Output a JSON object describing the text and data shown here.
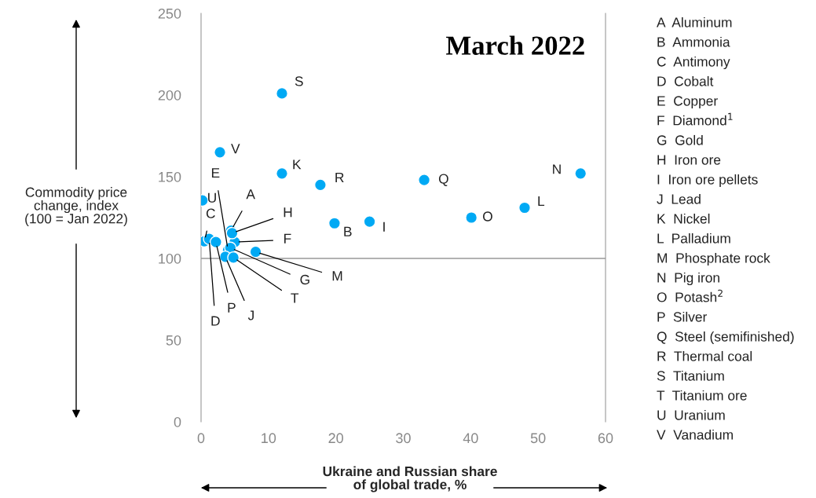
{
  "chart_data": {
    "type": "scatter",
    "title": "March 2022",
    "xlabel": "Ukraine and Russian share\nof global trade, %",
    "ylabel": "Commodity price\nchange, index\n(100 = Jan 2022)",
    "xlim": [
      0,
      60
    ],
    "xticks": [
      0,
      10,
      20,
      30,
      40,
      50,
      60
    ],
    "ylim": [
      0,
      250
    ],
    "yticks": [
      0,
      50,
      100,
      150,
      200,
      250
    ],
    "grid": false,
    "marker": "circle",
    "ref_lines": [
      {
        "axis": "y",
        "value": 100,
        "color": "#999999"
      }
    ],
    "series": [
      {
        "color": "#00a9f4",
        "x": [
          4.45,
          19.8,
          0.5,
          1.2,
          4.0,
          5.0,
          4.35,
          4.6,
          25.0,
          3.6,
          12.0,
          48.0,
          8.1,
          56.3,
          40.1,
          2.2,
          33.1,
          17.7,
          12.0,
          4.8,
          0.2,
          2.8
        ],
        "values": [
          117,
          121.5,
          110.5,
          112,
          105,
          110,
          106.5,
          115.5,
          122.5,
          101,
          152,
          131,
          104,
          152,
          125,
          110,
          148,
          145,
          201,
          100.5,
          135.5,
          165
        ],
        "value_labels": [
          "A",
          "B",
          "C",
          "D",
          "E",
          "F",
          "G",
          "H",
          "I",
          "J",
          "K",
          "L",
          "M",
          "N",
          "O",
          "P",
          "Q",
          "R",
          "S",
          "T",
          "U",
          "V"
        ]
      }
    ],
    "annotations": [
      "A  Aluminum",
      "B  Ammonia",
      "C  Antimony",
      "D  Cobalt",
      "E  Copper",
      "F  Diamond$^{1}$",
      "G  Gold",
      "H  Iron ore",
      "I  Iron ore pellets",
      "J  Lead",
      "K  Nickel",
      "L  Palladium",
      "M  Phosphate rock",
      "N  Pig iron",
      "O  Potash$^{2}$",
      "P  Silver",
      "Q  Steel (semifinished)",
      "R  Thermal coal",
      "S  Titanium",
      "T  Titanium ore",
      "U  Uranium",
      "V  Vanadium"
    ]
  }
}
